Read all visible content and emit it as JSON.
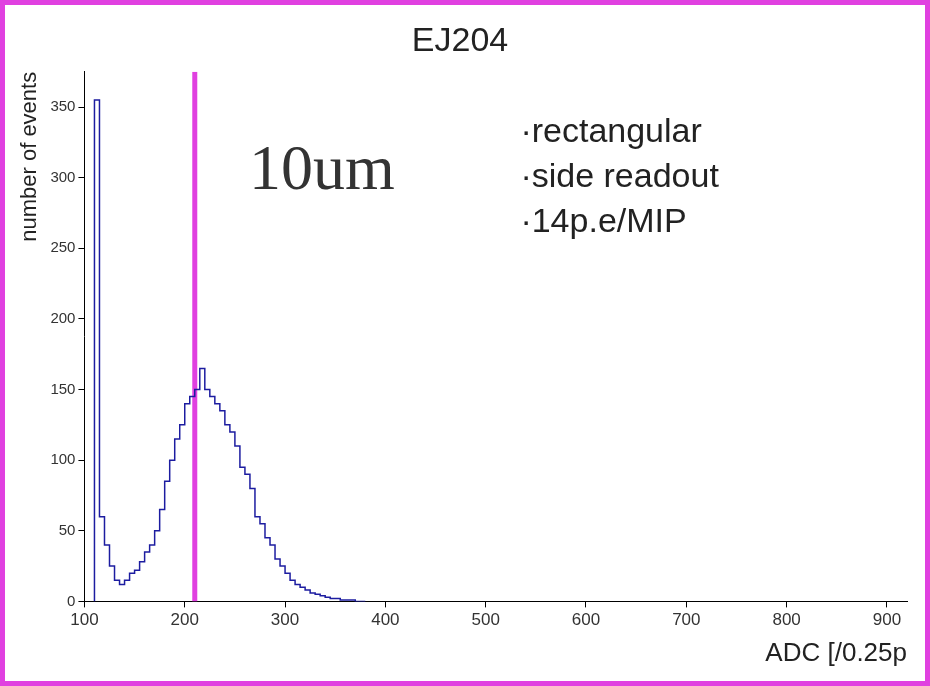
{
  "chart_data": {
    "type": "histogram",
    "title": "EJ204",
    "x_label": "ADC [/0.25p",
    "y_label": "number of events",
    "bins": [
      110,
      115,
      120,
      125,
      130,
      135,
      140,
      145,
      150,
      155,
      160,
      165,
      170,
      175,
      180,
      185,
      190,
      195,
      200,
      205,
      210,
      215,
      220,
      225,
      230,
      235,
      240,
      245,
      250,
      255,
      260,
      265,
      270,
      275,
      280,
      285,
      290,
      295,
      300,
      305,
      310,
      315,
      320,
      325,
      330,
      335,
      340,
      345,
      350,
      355,
      360,
      365,
      370,
      375,
      380
    ],
    "counts": [
      0,
      355,
      60,
      40,
      25,
      15,
      12,
      15,
      20,
      22,
      28,
      35,
      40,
      50,
      65,
      85,
      100,
      115,
      125,
      140,
      145,
      150,
      165,
      150,
      145,
      140,
      135,
      125,
      120,
      110,
      95,
      90,
      80,
      60,
      55,
      45,
      40,
      30,
      25,
      20,
      15,
      12,
      10,
      8,
      6,
      5,
      4,
      3,
      2,
      2,
      1,
      1,
      1,
      0
    ],
    "color": "#1c1ca0",
    "xlim": [
      100,
      920
    ],
    "xticks": [
      100,
      200,
      300,
      400,
      500,
      600,
      700,
      800,
      900
    ],
    "ylim": [
      0,
      375
    ],
    "yticks": [
      0,
      50,
      100,
      150,
      200,
      250,
      300,
      350
    ],
    "grid": false,
    "vline": {
      "x": 210,
      "color": "#e040e0"
    },
    "annotations": [
      "10um",
      "·rectangular",
      "·side readout",
      "·14p.e/MIP"
    ]
  }
}
